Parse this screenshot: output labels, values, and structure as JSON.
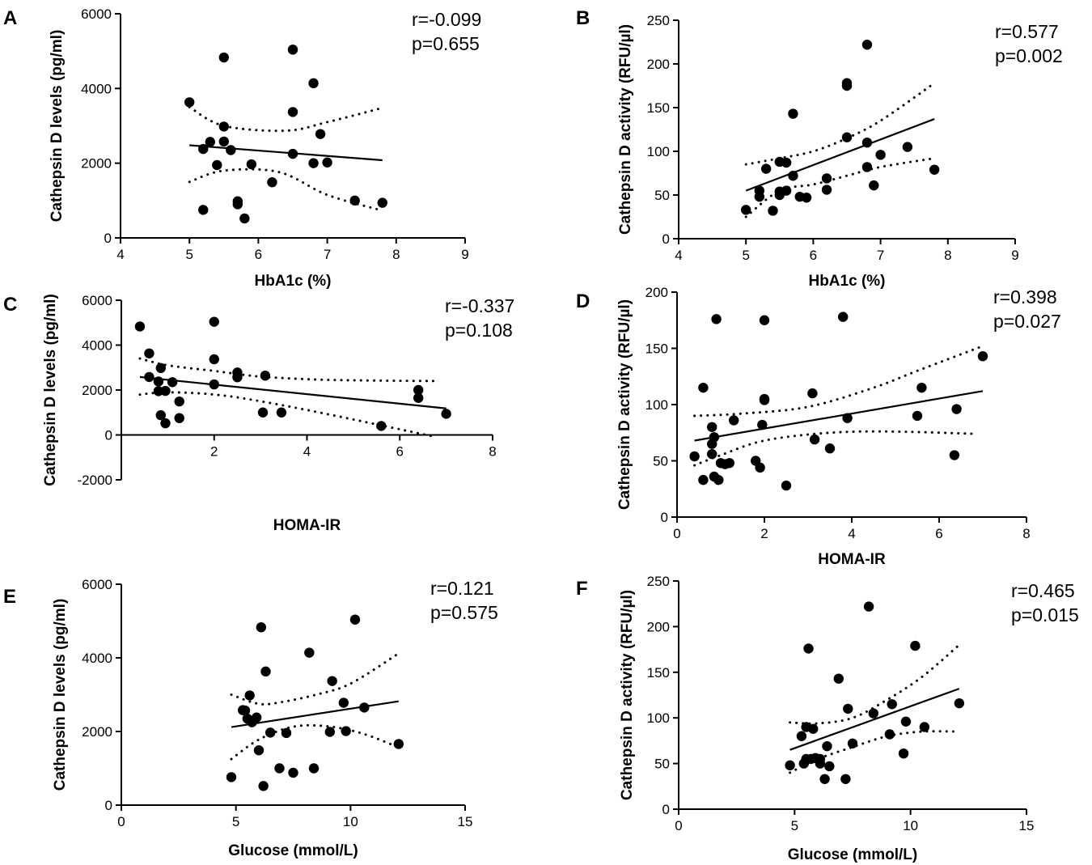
{
  "chart_data": [
    {
      "type": "scatter",
      "panel": "A",
      "xlabel": "HbA1c (%)",
      "ylabel": "Cathepsin D levels (pg/ml)",
      "xlim": [
        4,
        9
      ],
      "ylim": [
        0,
        6000
      ],
      "xticks": [
        4,
        5,
        6,
        7,
        8,
        9
      ],
      "yticks": [
        0,
        2000,
        4000,
        6000
      ],
      "stats": [
        "r=-0.099",
        "p=0.655"
      ],
      "fit": [
        [
          5,
          2480
        ],
        [
          7.8,
          2080
        ]
      ],
      "ci_upper": [
        [
          5,
          3500
        ],
        [
          5.5,
          3000
        ],
        [
          6.4,
          2870
        ],
        [
          7.0,
          3100
        ],
        [
          7.8,
          3480
        ]
      ],
      "ci_lower": [
        [
          5,
          1500
        ],
        [
          5.5,
          1800
        ],
        [
          6.3,
          1760
        ],
        [
          7.0,
          1150
        ],
        [
          7.8,
          730
        ]
      ],
      "points": [
        [
          5.0,
          3630
        ],
        [
          5.2,
          750
        ],
        [
          5.2,
          2380
        ],
        [
          5.3,
          2570
        ],
        [
          5.4,
          1950
        ],
        [
          5.5,
          4830
        ],
        [
          5.5,
          2980
        ],
        [
          5.5,
          2580
        ],
        [
          5.6,
          2350
        ],
        [
          5.7,
          980
        ],
        [
          5.7,
          900
        ],
        [
          5.8,
          520
        ],
        [
          5.9,
          1970
        ],
        [
          6.2,
          1490
        ],
        [
          6.5,
          5040
        ],
        [
          6.5,
          3370
        ],
        [
          6.5,
          2250
        ],
        [
          6.8,
          4140
        ],
        [
          6.8,
          2000
        ],
        [
          6.9,
          2780
        ],
        [
          7.0,
          2020
        ],
        [
          7.4,
          1000
        ],
        [
          7.8,
          940
        ]
      ]
    },
    {
      "type": "scatter",
      "panel": "B",
      "xlabel": "HbA1c (%)",
      "ylabel": "Cathepsin D activity (RFU/µl)",
      "xlim": [
        4,
        9
      ],
      "ylim": [
        0,
        250
      ],
      "xticks": [
        4,
        5,
        6,
        7,
        8,
        9
      ],
      "yticks": [
        0,
        50,
        100,
        150,
        200,
        250
      ],
      "stats": [
        "r=0.577",
        "p=0.002"
      ],
      "fit": [
        [
          5,
          55
        ],
        [
          7.8,
          137
        ]
      ],
      "ci_upper": [
        [
          5,
          85
        ],
        [
          5.5,
          92
        ],
        [
          6.0,
          100
        ],
        [
          6.5,
          115
        ],
        [
          7.0,
          135
        ],
        [
          7.8,
          178
        ]
      ],
      "ci_lower": [
        [
          5,
          25
        ],
        [
          5.5,
          55
        ],
        [
          6.0,
          62
        ],
        [
          6.5,
          72
        ],
        [
          7.0,
          82
        ],
        [
          7.8,
          92
        ]
      ],
      "points": [
        [
          5.0,
          33
        ],
        [
          5.2,
          48
        ],
        [
          5.2,
          55
        ],
        [
          5.3,
          80
        ],
        [
          5.4,
          32
        ],
        [
          5.5,
          50
        ],
        [
          5.5,
          54
        ],
        [
          5.5,
          88
        ],
        [
          5.6,
          55
        ],
        [
          5.6,
          87
        ],
        [
          5.7,
          143
        ],
        [
          5.7,
          72
        ],
        [
          5.8,
          48
        ],
        [
          5.9,
          47
        ],
        [
          6.2,
          69
        ],
        [
          6.2,
          56
        ],
        [
          6.5,
          178
        ],
        [
          6.5,
          175
        ],
        [
          6.5,
          116
        ],
        [
          6.8,
          222
        ],
        [
          6.8,
          110
        ],
        [
          6.8,
          82
        ],
        [
          6.9,
          61
        ],
        [
          7.0,
          96
        ],
        [
          7.4,
          105
        ],
        [
          7.8,
          79
        ]
      ]
    },
    {
      "type": "scatter",
      "panel": "C",
      "xlabel": "HOMA-IR",
      "ylabel": "Cathepsin D levels (pg/ml)",
      "xlim": [
        0,
        8
      ],
      "ylim": [
        -2000,
        6000
      ],
      "xticks": [
        2,
        4,
        6,
        8
      ],
      "yticks": [
        -2000,
        0,
        2000,
        4000,
        6000
      ],
      "stats": [
        "r=-0.337",
        "p=0.108"
      ],
      "fit": [
        [
          0.4,
          2580
        ],
        [
          7.0,
          1180
        ]
      ],
      "ci_upper": [
        [
          0.4,
          3400
        ],
        [
          1.0,
          3100
        ],
        [
          2.0,
          2850
        ],
        [
          3.0,
          2600
        ],
        [
          4.5,
          2450
        ],
        [
          6.8,
          2400
        ]
      ],
      "ci_lower": [
        [
          0.4,
          1800
        ],
        [
          1.0,
          1900
        ],
        [
          2.0,
          1800
        ],
        [
          3.0,
          1500
        ],
        [
          4.5,
          900
        ],
        [
          6.8,
          -100
        ]
      ],
      "points": [
        [
          0.4,
          4830
        ],
        [
          0.6,
          3630
        ],
        [
          0.6,
          2580
        ],
        [
          0.8,
          2380
        ],
        [
          0.8,
          1950
        ],
        [
          0.85,
          2980
        ],
        [
          0.85,
          880
        ],
        [
          0.95,
          1960
        ],
        [
          0.95,
          520
        ],
        [
          1.1,
          2350
        ],
        [
          1.25,
          1490
        ],
        [
          1.25,
          750
        ],
        [
          2.0,
          5040
        ],
        [
          2.0,
          3370
        ],
        [
          2.0,
          2250
        ],
        [
          2.5,
          2780
        ],
        [
          2.5,
          2570
        ],
        [
          3.1,
          2640
        ],
        [
          3.05,
          1000
        ],
        [
          3.45,
          1000
        ],
        [
          5.6,
          400
        ],
        [
          6.4,
          2000
        ],
        [
          6.4,
          1650
        ],
        [
          7.0,
          940
        ]
      ]
    },
    {
      "type": "scatter",
      "panel": "D",
      "xlabel": "HOMA-IR",
      "ylabel": "Cathepsin D activity (RFU/µl)",
      "xlim": [
        0,
        8
      ],
      "ylim": [
        0,
        200
      ],
      "xticks": [
        0,
        2,
        4,
        6,
        8
      ],
      "yticks": [
        0,
        50,
        100,
        150,
        200
      ],
      "stats": [
        "r=0.398",
        "p=0.027"
      ],
      "fit": [
        [
          0.4,
          68
        ],
        [
          7.0,
          112
        ]
      ],
      "ci_upper": [
        [
          0.4,
          90
        ],
        [
          1.5,
          92
        ],
        [
          3.0,
          98
        ],
        [
          4.5,
          115
        ],
        [
          5.5,
          130
        ],
        [
          7.0,
          152
        ]
      ],
      "ci_lower": [
        [
          0.4,
          46
        ],
        [
          1.0,
          55
        ],
        [
          2.0,
          68
        ],
        [
          3.5,
          75
        ],
        [
          5.0,
          76
        ],
        [
          6.8,
          74
        ]
      ],
      "points": [
        [
          0.4,
          54
        ],
        [
          0.6,
          115
        ],
        [
          0.6,
          33
        ],
        [
          0.8,
          80
        ],
        [
          0.8,
          65
        ],
        [
          0.8,
          56
        ],
        [
          0.85,
          71
        ],
        [
          0.9,
          176
        ],
        [
          0.85,
          36
        ],
        [
          0.95,
          33
        ],
        [
          1.0,
          48
        ],
        [
          1.1,
          47
        ],
        [
          1.2,
          48
        ],
        [
          1.3,
          86
        ],
        [
          1.8,
          50
        ],
        [
          1.9,
          44
        ],
        [
          1.95,
          82
        ],
        [
          2.0,
          105
        ],
        [
          2.0,
          104
        ],
        [
          2.0,
          175
        ],
        [
          2.5,
          28
        ],
        [
          3.1,
          110
        ],
        [
          3.15,
          69
        ],
        [
          3.5,
          61
        ],
        [
          3.8,
          178
        ],
        [
          3.9,
          88
        ],
        [
          5.5,
          90
        ],
        [
          5.6,
          115
        ],
        [
          6.4,
          96
        ],
        [
          6.35,
          55
        ],
        [
          7.0,
          143
        ]
      ]
    },
    {
      "type": "scatter",
      "panel": "E",
      "xlabel": "Glucose (mmol/L)",
      "ylabel": "Cathepsin D levels (pg/ml)",
      "xlim": [
        0,
        15
      ],
      "ylim": [
        0,
        6000
      ],
      "xticks": [
        0,
        5,
        10,
        15
      ],
      "yticks": [
        0,
        2000,
        4000,
        6000
      ],
      "stats": [
        "r=0.121",
        "p=0.575"
      ],
      "fit": [
        [
          4.8,
          2120
        ],
        [
          12.1,
          2820
        ]
      ],
      "ci_upper": [
        [
          4.8,
          3000
        ],
        [
          6.0,
          2750
        ],
        [
          7.0,
          2800
        ],
        [
          8.5,
          3000
        ],
        [
          10.0,
          3300
        ],
        [
          12.1,
          4120
        ]
      ],
      "ci_lower": [
        [
          4.8,
          1250
        ],
        [
          6.0,
          1780
        ],
        [
          7.5,
          2130
        ],
        [
          9.0,
          2140
        ],
        [
          10.5,
          1950
        ],
        [
          12.1,
          1570
        ]
      ],
      "points": [
        [
          4.8,
          760
        ],
        [
          5.3,
          2580
        ],
        [
          5.4,
          2570
        ],
        [
          5.5,
          2350
        ],
        [
          5.6,
          2980
        ],
        [
          5.7,
          2250
        ],
        [
          5.9,
          2380
        ],
        [
          6.0,
          1490
        ],
        [
          6.1,
          4830
        ],
        [
          6.2,
          520
        ],
        [
          6.3,
          3630
        ],
        [
          6.5,
          1970
        ],
        [
          6.9,
          1000
        ],
        [
          7.2,
          1960
        ],
        [
          7.5,
          880
        ],
        [
          8.2,
          4140
        ],
        [
          8.4,
          1000
        ],
        [
          9.1,
          1990
        ],
        [
          9.2,
          3370
        ],
        [
          9.7,
          2780
        ],
        [
          9.8,
          2010
        ],
        [
          10.2,
          5040
        ],
        [
          10.6,
          2650
        ],
        [
          12.1,
          1660
        ]
      ]
    },
    {
      "type": "scatter",
      "panel": "F",
      "xlabel": "Glucose (mmol/L)",
      "ylabel": "Cathepsin D activity (RFU/µl)",
      "xlim": [
        0,
        15
      ],
      "ylim": [
        0,
        250
      ],
      "xticks": [
        0,
        5,
        10,
        15
      ],
      "yticks": [
        0,
        50,
        100,
        150,
        200,
        250
      ],
      "stats": [
        "r=0.465",
        "p=0.015"
      ],
      "fit": [
        [
          4.8,
          65
        ],
        [
          12.1,
          132
        ]
      ],
      "ci_upper": [
        [
          4.8,
          95
        ],
        [
          6.0,
          94
        ],
        [
          7.5,
          100
        ],
        [
          9.0,
          120
        ],
        [
          10.5,
          145
        ],
        [
          12.1,
          180
        ]
      ],
      "ci_lower": [
        [
          4.8,
          40
        ],
        [
          6.0,
          55
        ],
        [
          7.5,
          68
        ],
        [
          9.0,
          80
        ],
        [
          10.5,
          85
        ],
        [
          12.1,
          85
        ]
      ],
      "points": [
        [
          4.8,
          48
        ],
        [
          5.3,
          80
        ],
        [
          5.4,
          50
        ],
        [
          5.5,
          55
        ],
        [
          5.5,
          90
        ],
        [
          5.6,
          176
        ],
        [
          5.7,
          55
        ],
        [
          5.8,
          88
        ],
        [
          5.9,
          56
        ],
        [
          6.1,
          50
        ],
        [
          6.1,
          55
        ],
        [
          6.3,
          33
        ],
        [
          6.4,
          69
        ],
        [
          6.5,
          47
        ],
        [
          6.9,
          143
        ],
        [
          7.2,
          33
        ],
        [
          7.3,
          110
        ],
        [
          7.5,
          72
        ],
        [
          8.2,
          222
        ],
        [
          8.4,
          105
        ],
        [
          9.1,
          82
        ],
        [
          9.2,
          115
        ],
        [
          9.7,
          61
        ],
        [
          9.8,
          96
        ],
        [
          10.2,
          179
        ],
        [
          10.6,
          90
        ],
        [
          12.1,
          116
        ]
      ]
    }
  ]
}
